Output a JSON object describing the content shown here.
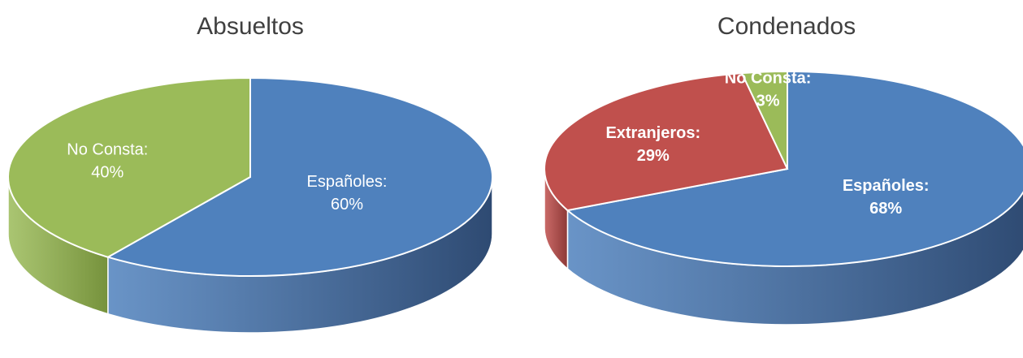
{
  "chart_data": [
    {
      "type": "pie",
      "title": "Absueltos",
      "slices": [
        {
          "label": "Españoles",
          "value": 60,
          "display": "60%",
          "color": "#4F81BD",
          "side": "#2E4A72"
        },
        {
          "label": "No Consta",
          "value": 40,
          "display": "40%",
          "color": "#9BBB59",
          "side": "#76923C"
        }
      ],
      "label_style": "normal",
      "label_color": "#FFFFFF",
      "three_d": true
    },
    {
      "type": "pie",
      "title": "Condenados",
      "slices": [
        {
          "label": "Españoles",
          "value": 68,
          "display": "68%",
          "color": "#4F81BD",
          "side": "#2E4A72"
        },
        {
          "label": "Extranjeros",
          "value": 29,
          "display": "29%",
          "color": "#C0504D",
          "side": "#8C3836"
        },
        {
          "label": "No Consta",
          "value": 3,
          "display": "3%",
          "color": "#9BBB59",
          "side": "#76923C"
        }
      ],
      "label_style": "bold",
      "label_color": "#FFFFFF",
      "three_d": true
    }
  ]
}
